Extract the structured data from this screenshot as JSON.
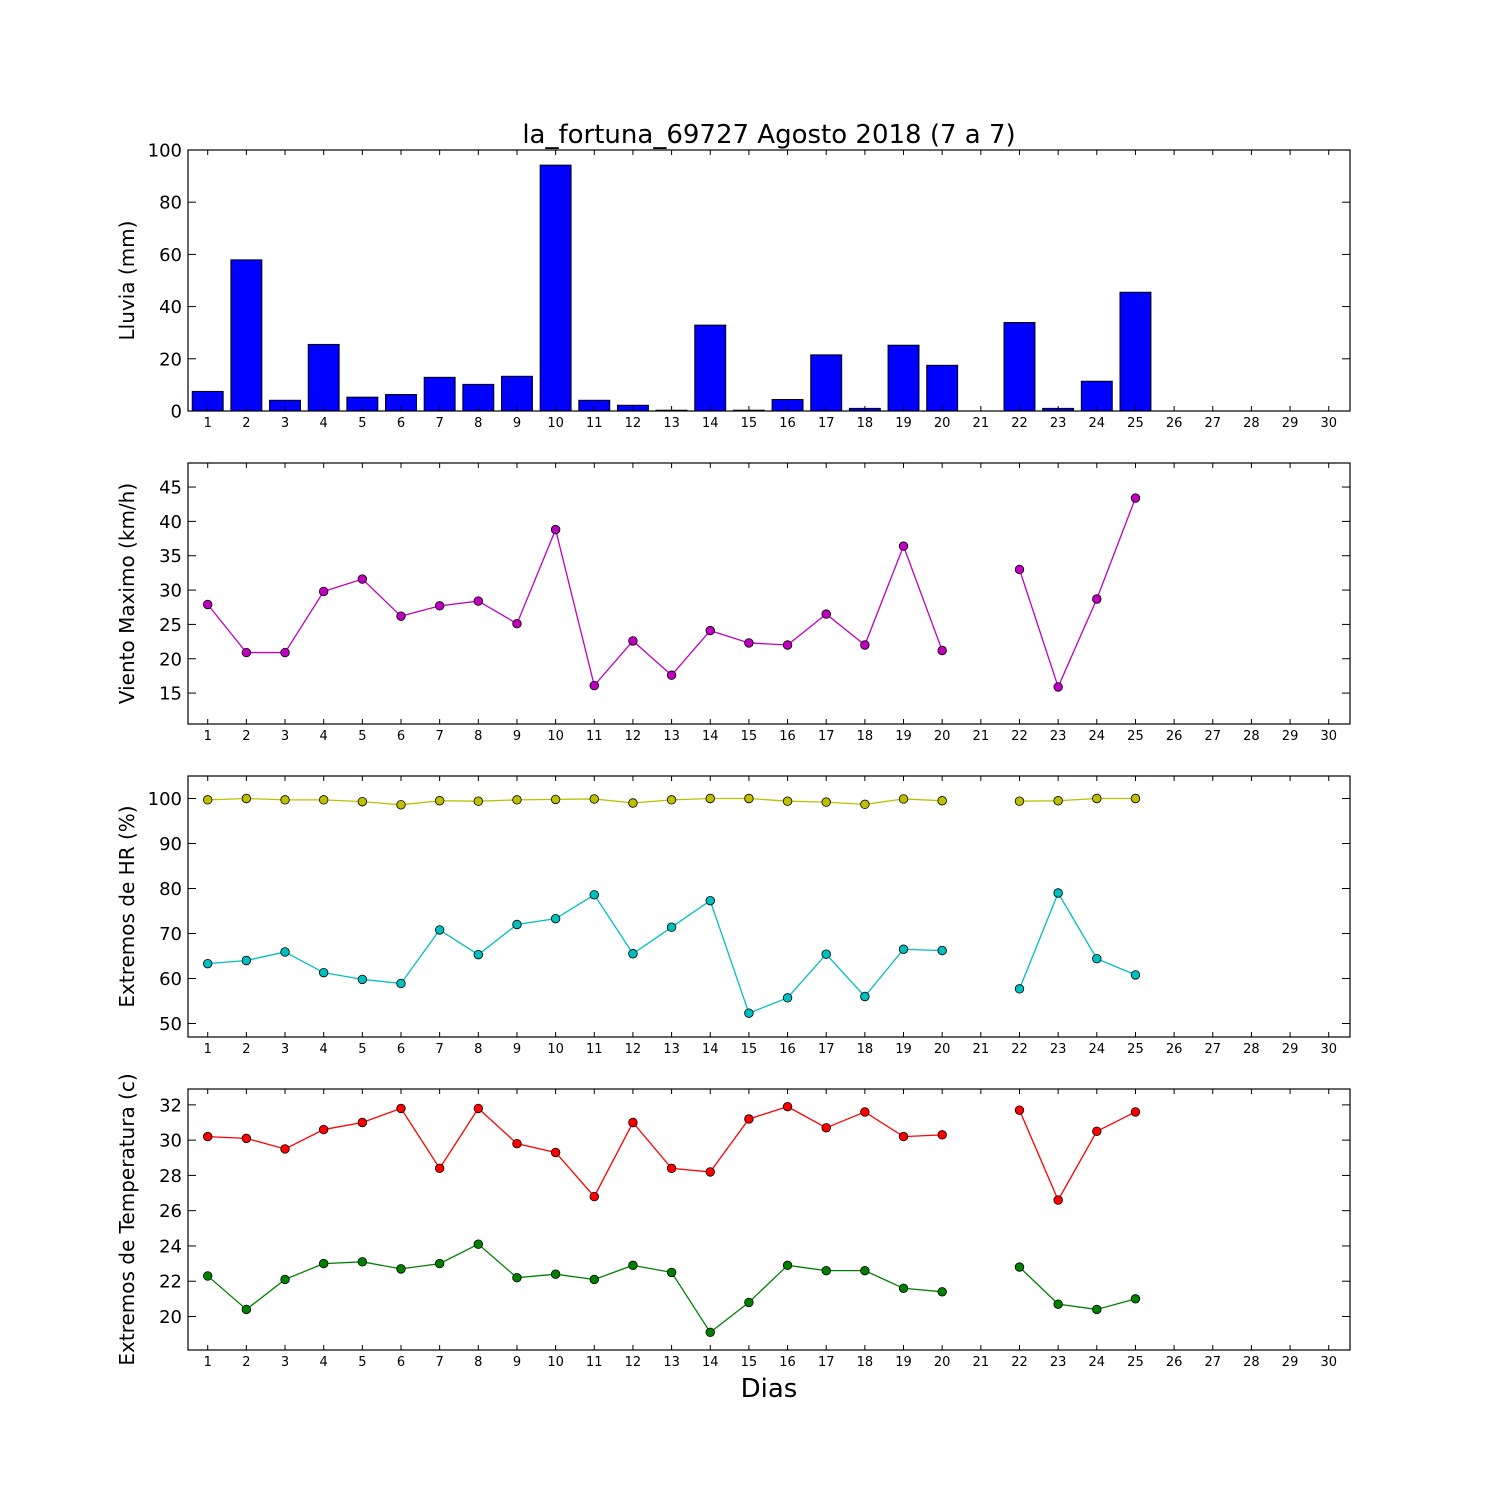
{
  "chart_data": [
    {
      "type": "bar",
      "title": "la_fortuna_69727 Agosto 2018  (7 a 7)",
      "ylabel": "Lluvia (mm)",
      "xlabel": "",
      "ylim": [
        0,
        100
      ],
      "yticks": [
        0,
        20,
        40,
        60,
        80,
        100
      ],
      "categories": [
        "1",
        "2",
        "3",
        "4",
        "5",
        "6",
        "7",
        "8",
        "9",
        "10",
        "11",
        "12",
        "13",
        "14",
        "15",
        "16",
        "17",
        "18",
        "19",
        "20",
        "21",
        "22",
        "23",
        "24",
        "25",
        "26",
        "27",
        "28",
        "29",
        "30"
      ],
      "series": [
        {
          "color": "#0000ff",
          "values": [
            7.5,
            57.9,
            4.1,
            25.5,
            5.3,
            6.3,
            12.9,
            10.2,
            13.3,
            94.2,
            4.1,
            2.2,
            0.3,
            32.9,
            0.3,
            4.4,
            21.5,
            1.0,
            25.2,
            17.5,
            0.0,
            33.9,
            1.0,
            11.4,
            45.5,
            null,
            null,
            null,
            null,
            null
          ]
        }
      ],
      "grid": false
    },
    {
      "type": "line",
      "title": "",
      "ylabel": "Viento Maximo (km/h)",
      "xlabel": "",
      "ylim": [
        10.5,
        48.5
      ],
      "yticks": [
        15,
        20,
        25,
        30,
        35,
        40,
        45
      ],
      "categories": [
        "1",
        "2",
        "3",
        "4",
        "5",
        "6",
        "7",
        "8",
        "9",
        "10",
        "11",
        "12",
        "13",
        "14",
        "15",
        "16",
        "17",
        "18",
        "19",
        "20",
        "21",
        "22",
        "23",
        "24",
        "25",
        "26",
        "27",
        "28",
        "29",
        "30"
      ],
      "series": [
        {
          "color": "#bf00bf",
          "values": [
            27.9,
            20.9,
            20.9,
            29.8,
            31.6,
            26.2,
            27.7,
            28.4,
            25.1,
            38.8,
            16.1,
            22.6,
            17.6,
            24.1,
            22.3,
            22.0,
            26.5,
            22.0,
            36.4,
            21.2,
            null,
            33.0,
            15.9,
            28.7,
            43.4,
            null,
            null,
            null,
            null,
            null
          ]
        }
      ],
      "grid": false
    },
    {
      "type": "line",
      "title": "",
      "ylabel": "Extremos de HR (%)",
      "xlabel": "",
      "ylim": [
        47,
        105
      ],
      "yticks": [
        50,
        60,
        70,
        80,
        90,
        100
      ],
      "categories": [
        "1",
        "2",
        "3",
        "4",
        "5",
        "6",
        "7",
        "8",
        "9",
        "10",
        "11",
        "12",
        "13",
        "14",
        "15",
        "16",
        "17",
        "18",
        "19",
        "20",
        "21",
        "22",
        "23",
        "24",
        "25",
        "26",
        "27",
        "28",
        "29",
        "30"
      ],
      "series": [
        {
          "color": "#bfbf00",
          "values": [
            99.7,
            100.0,
            99.7,
            99.7,
            99.3,
            98.6,
            99.5,
            99.4,
            99.7,
            99.8,
            99.9,
            99.0,
            99.7,
            100.0,
            100.0,
            99.4,
            99.2,
            98.7,
            99.9,
            99.5,
            null,
            99.4,
            99.5,
            100.0,
            100.0,
            null,
            null,
            null,
            null,
            null
          ]
        },
        {
          "color": "#00bfbf",
          "values": [
            63.3,
            64.0,
            65.9,
            61.3,
            59.8,
            58.9,
            70.8,
            65.3,
            72.0,
            73.3,
            78.6,
            65.5,
            71.4,
            77.3,
            52.3,
            55.7,
            65.4,
            56.0,
            66.5,
            66.2,
            null,
            57.7,
            79.0,
            64.4,
            60.8,
            null,
            null,
            null,
            null,
            null
          ]
        }
      ],
      "grid": false
    },
    {
      "type": "line",
      "title": "",
      "ylabel": "Extremos de Temperatura (c)",
      "xlabel": "Dias",
      "ylim": [
        18.1,
        32.9
      ],
      "yticks": [
        20,
        22,
        24,
        26,
        28,
        30,
        32
      ],
      "categories": [
        "1",
        "2",
        "3",
        "4",
        "5",
        "6",
        "7",
        "8",
        "9",
        "10",
        "11",
        "12",
        "13",
        "14",
        "15",
        "16",
        "17",
        "18",
        "19",
        "20",
        "21",
        "22",
        "23",
        "24",
        "25",
        "26",
        "27",
        "28",
        "29",
        "30"
      ],
      "series": [
        {
          "color": "#ff0000",
          "values": [
            30.2,
            30.1,
            29.5,
            30.6,
            31.0,
            31.8,
            28.4,
            31.8,
            29.8,
            29.3,
            26.8,
            31.0,
            28.4,
            28.2,
            31.2,
            31.9,
            30.7,
            31.6,
            30.2,
            30.3,
            null,
            31.7,
            26.6,
            30.5,
            31.6,
            null,
            null,
            null,
            null,
            null
          ]
        },
        {
          "color": "#008000",
          "values": [
            22.3,
            20.4,
            22.1,
            23.0,
            23.1,
            22.7,
            23.0,
            24.1,
            22.2,
            22.4,
            22.1,
            22.9,
            22.5,
            19.1,
            20.8,
            22.9,
            22.6,
            22.6,
            21.6,
            21.4,
            null,
            22.8,
            20.7,
            20.4,
            21.0,
            null,
            null,
            null,
            null,
            null
          ]
        }
      ],
      "grid": false
    }
  ]
}
